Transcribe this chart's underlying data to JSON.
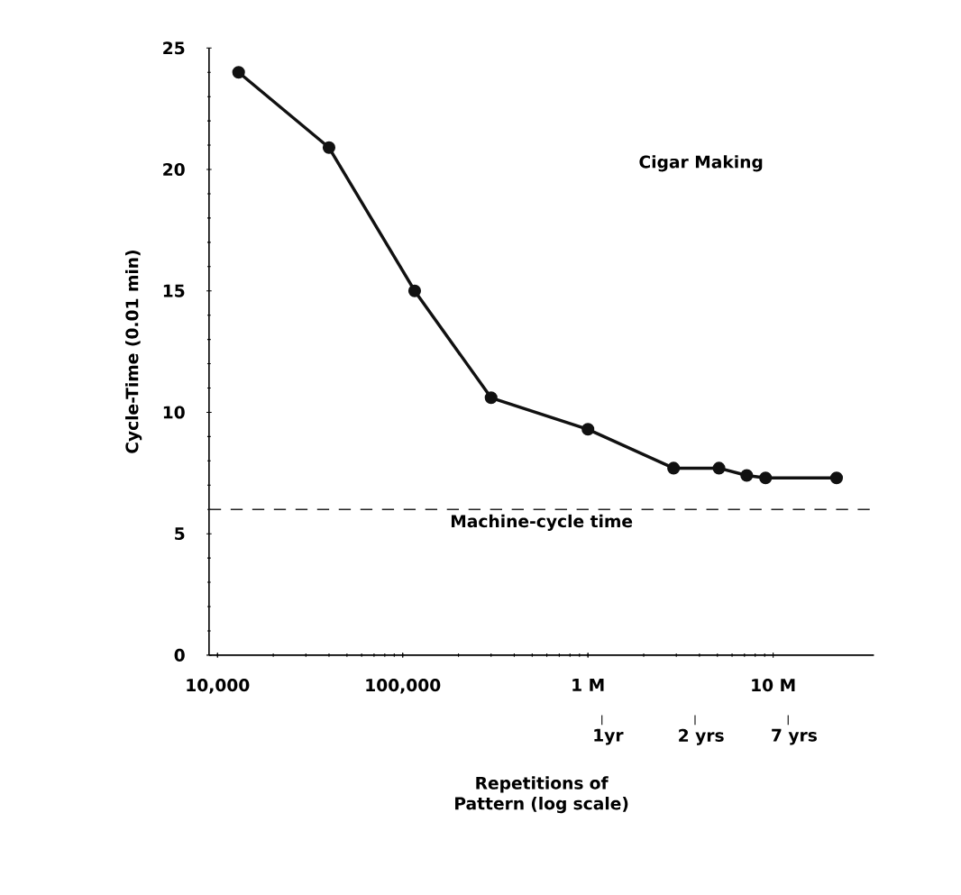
{
  "chart_data": {
    "type": "line",
    "xlabel": "Repetitions of Pattern (log scale)",
    "ylabel": "Cycle-Time (0.01 min)",
    "log": "x",
    "marker": "circle",
    "line_style": "solid",
    "x": [
      13000,
      40000,
      116000,
      300000,
      1000000,
      2900000,
      5100000,
      7200000,
      9100000,
      22000000
    ],
    "series": [
      {
        "color": "#111111",
        "values": [
          24.0,
          20.9,
          15.0,
          10.6,
          9.3,
          7.7,
          7.7,
          7.4,
          7.3,
          7.3
        ]
      }
    ],
    "xlim": [
      9000,
      35000000
    ],
    "ylim": [
      0,
      25
    ],
    "xticks": [
      {
        "value": 10000,
        "label": "10,000"
      },
      {
        "value": 100000,
        "label": "100,000"
      },
      {
        "value": 1000000,
        "label": "1 M"
      },
      {
        "value": 10000000,
        "label": "10 M"
      }
    ],
    "yticks": [
      0,
      5,
      10,
      15,
      20,
      25
    ],
    "ref_lines": [
      {
        "axis": "y",
        "value": 6,
        "label": "Machine-cycle time",
        "line_style": "dashed",
        "color": "#222222"
      }
    ],
    "annotations": [
      "Cigar Making",
      "1yr",
      "2 yrs",
      "7 yrs"
    ]
  }
}
